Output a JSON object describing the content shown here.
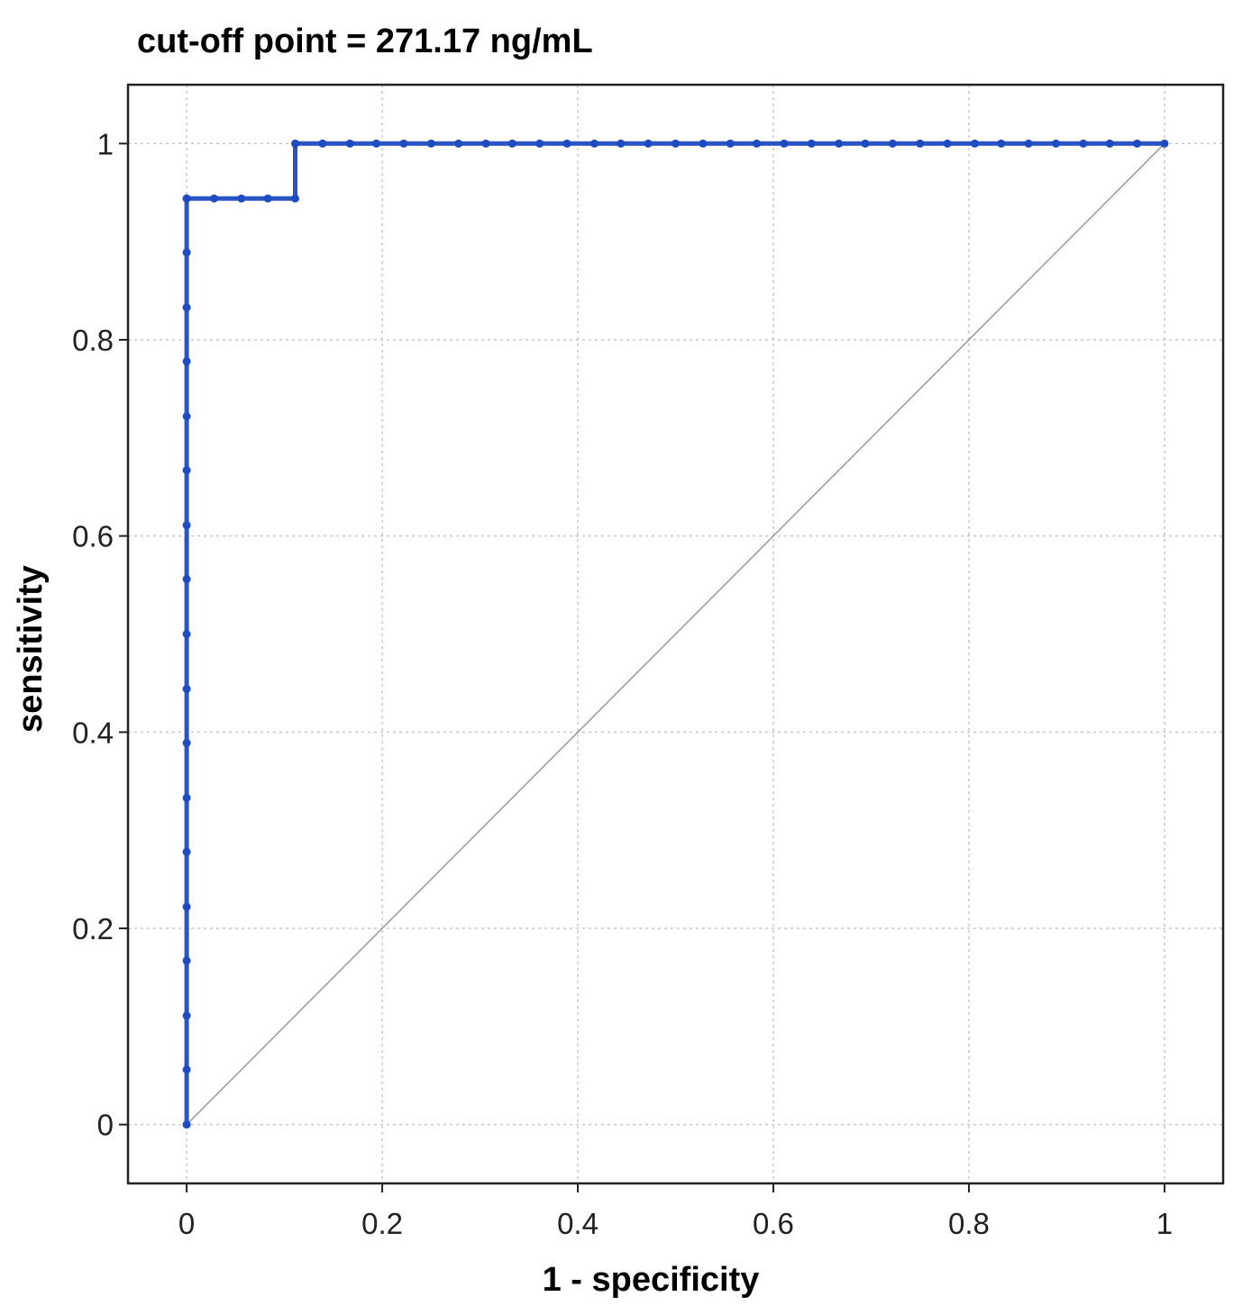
{
  "chart_data": {
    "type": "line",
    "title": "cut-off point = 271.17 ng/mL",
    "xlabel": "1 - specificity",
    "ylabel": "sensitivity",
    "xlim": [
      -0.06,
      1.06
    ],
    "ylim": [
      -0.06,
      1.06
    ],
    "x_ticks": [
      "0",
      "0.2",
      "0.4",
      "0.6",
      "0.8",
      "1"
    ],
    "y_ticks": [
      "0",
      "0.2",
      "0.4",
      "0.6",
      "0.8",
      "1"
    ],
    "grid": true,
    "reference_line": {
      "x": [
        0,
        1
      ],
      "y": [
        0,
        1
      ]
    },
    "series": [
      {
        "color": "#2a54c6",
        "x": [
          0,
          0,
          0,
          0,
          0,
          0,
          0,
          0,
          0,
          0,
          0,
          0,
          0,
          0,
          0,
          0,
          0,
          0,
          0,
          0.028,
          0.056,
          0.083,
          0.111,
          0.111,
          0.139,
          0.167,
          0.194,
          0.222,
          0.25,
          0.278,
          0.306,
          0.333,
          0.361,
          0.389,
          0.417,
          0.444,
          0.472,
          0.5,
          0.528,
          0.556,
          0.583,
          0.611,
          0.639,
          0.667,
          0.694,
          0.722,
          0.75,
          0.778,
          0.806,
          0.833,
          0.861,
          0.889,
          0.917,
          0.944,
          0.972,
          1.0
        ],
        "y": [
          0,
          0.056,
          0.111,
          0.167,
          0.222,
          0.278,
          0.333,
          0.389,
          0.444,
          0.5,
          0.556,
          0.611,
          0.667,
          0.722,
          0.778,
          0.833,
          0.889,
          0.944,
          0.944,
          0.944,
          0.944,
          0.944,
          0.944,
          1,
          1,
          1,
          1,
          1,
          1,
          1,
          1,
          1,
          1,
          1,
          1,
          1,
          1,
          1,
          1,
          1,
          1,
          1,
          1,
          1,
          1,
          1,
          1,
          1,
          1,
          1,
          1,
          1,
          1,
          1,
          1,
          1
        ]
      }
    ]
  }
}
